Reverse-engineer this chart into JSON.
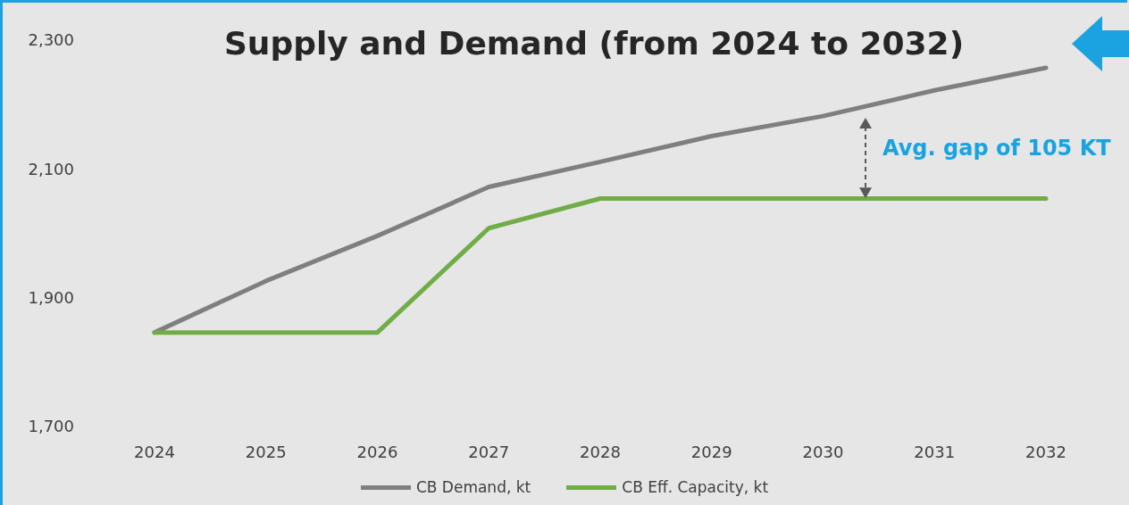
{
  "chart_data": {
    "type": "line",
    "title": "Supply and Demand (from 2024 to 2032)",
    "categories": [
      "2024",
      "2025",
      "2026",
      "2027",
      "2028",
      "2029",
      "2030",
      "2031",
      "2032"
    ],
    "series": [
      {
        "name": "CB Demand, kt",
        "color": "#7f7f7f",
        "values": [
          1846,
          1926,
          1996,
          2072,
          2111,
          2151,
          2182,
          2222,
          2257
        ]
      },
      {
        "name": "CB Eff. Capacity, kt",
        "color": "#70ad47",
        "values": [
          1846,
          1846,
          1846,
          2008,
          2054,
          2054,
          2054,
          2054,
          2054
        ]
      }
    ],
    "ylim": [
      1700,
      2300
    ],
    "yticks": [
      {
        "value": 1700,
        "label": "1,700"
      },
      {
        "value": 1900,
        "label": "1,900"
      },
      {
        "value": 2100,
        "label": "2,100"
      },
      {
        "value": 2300,
        "label": "2,300"
      }
    ],
    "grid": false,
    "legend": "bottom",
    "marker": "none",
    "line_style": "solid",
    "annotations": [
      "Avg. gap of 105 KT"
    ]
  }
}
